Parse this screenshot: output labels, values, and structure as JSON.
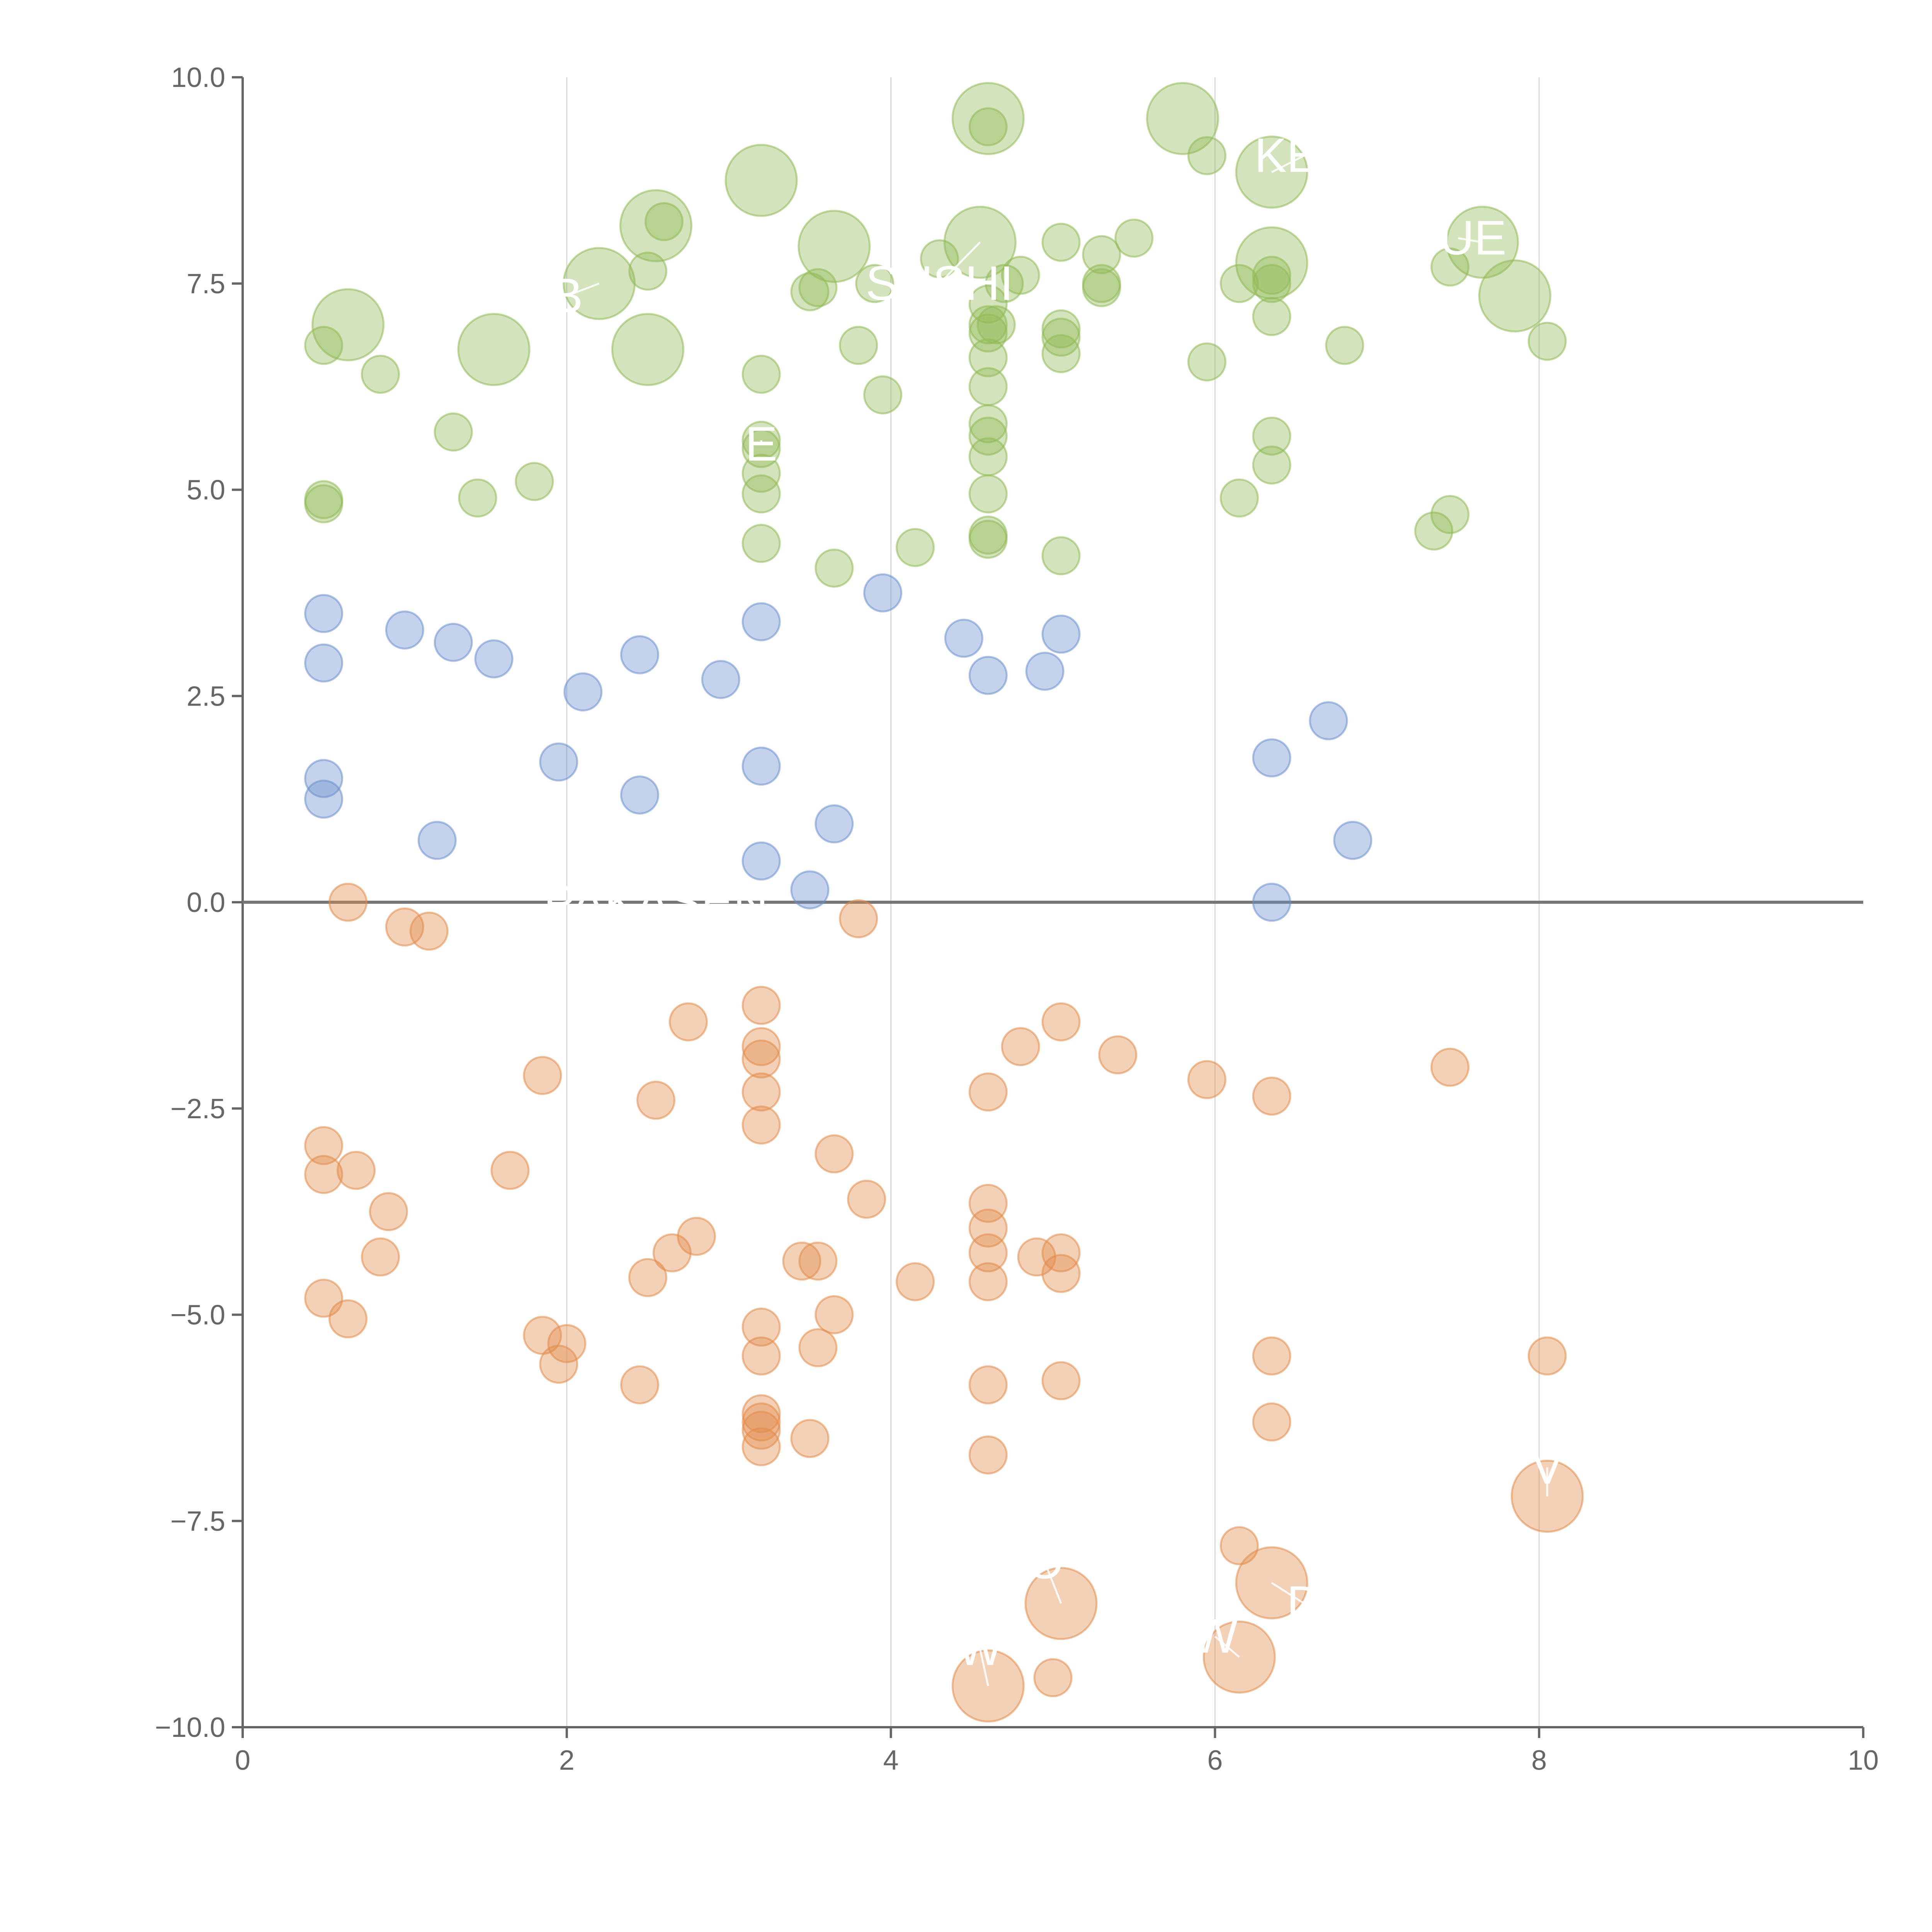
{
  "colors": {
    "positive": "#90b955",
    "neutral": "#6b8fcc",
    "negative": "#e28c4a",
    "axis": "#666666",
    "grid": "#d9d9d9",
    "zero": "#777777",
    "label": "#ffffff"
  },
  "chart_data": {
    "type": "scatter",
    "title": "",
    "xlabel": "",
    "ylabel": "",
    "xlim": [
      0,
      10
    ],
    "ylim": [
      -10,
      10
    ],
    "x_ticks": [
      "0",
      "2",
      "4",
      "6",
      "8",
      "10"
    ],
    "y_ticks": [
      "10.0",
      "7.5",
      "5.0",
      "2.5",
      "0.0",
      "−2.5",
      "−5.0",
      "−7.5",
      "−10.0"
    ],
    "grid": "vertical lines at x ticks",
    "series": [
      {
        "name": "positive",
        "color": "#90b955",
        "points": [
          {
            "x": 0.65,
            "y": 7.0,
            "r": 2
          },
          {
            "x": 1.55,
            "y": 6.7,
            "r": 2
          },
          {
            "x": 2.2,
            "y": 7.5,
            "r": 2
          },
          {
            "x": 2.55,
            "y": 8.2,
            "r": 2
          },
          {
            "x": 2.5,
            "y": 6.7,
            "r": 2
          },
          {
            "x": 3.2,
            "y": 8.75,
            "r": 2
          },
          {
            "x": 3.65,
            "y": 7.95,
            "r": 2
          },
          {
            "x": 4.6,
            "y": 9.5,
            "r": 2
          },
          {
            "x": 4.55,
            "y": 8.0,
            "r": 2
          },
          {
            "x": 5.8,
            "y": 9.5,
            "r": 2
          },
          {
            "x": 6.35,
            "y": 8.85,
            "r": 2
          },
          {
            "x": 6.35,
            "y": 7.75,
            "r": 2
          },
          {
            "x": 7.65,
            "y": 8.0,
            "r": 2
          },
          {
            "x": 7.85,
            "y": 7.35,
            "r": 2
          },
          {
            "x": 0.5,
            "y": 6.75,
            "r": 1
          },
          {
            "x": 0.85,
            "y": 6.4,
            "r": 1
          },
          {
            "x": 1.3,
            "y": 5.7,
            "r": 1
          },
          {
            "x": 0.5,
            "y": 4.88,
            "r": 1
          },
          {
            "x": 0.5,
            "y": 4.83,
            "r": 1
          },
          {
            "x": 1.45,
            "y": 4.9,
            "r": 1
          },
          {
            "x": 1.8,
            "y": 5.1,
            "r": 1
          },
          {
            "x": 2.5,
            "y": 7.65,
            "r": 1
          },
          {
            "x": 2.6,
            "y": 8.25,
            "r": 1
          },
          {
            "x": 3.2,
            "y": 6.4,
            "r": 1
          },
          {
            "x": 3.2,
            "y": 5.6,
            "r": 1
          },
          {
            "x": 3.2,
            "y": 5.5,
            "r": 1
          },
          {
            "x": 3.2,
            "y": 5.2,
            "r": 1
          },
          {
            "x": 3.2,
            "y": 4.95,
            "r": 1
          },
          {
            "x": 3.2,
            "y": 4.35,
            "r": 1
          },
          {
            "x": 3.5,
            "y": 7.4,
            "r": 1
          },
          {
            "x": 3.55,
            "y": 7.45,
            "r": 1
          },
          {
            "x": 3.65,
            "y": 4.05,
            "r": 1
          },
          {
            "x": 3.8,
            "y": 6.75,
            "r": 1
          },
          {
            "x": 3.9,
            "y": 7.5,
            "r": 1
          },
          {
            "x": 3.95,
            "y": 6.15,
            "r": 1
          },
          {
            "x": 4.15,
            "y": 4.3,
            "r": 1
          },
          {
            "x": 4.3,
            "y": 7.8,
            "r": 1
          },
          {
            "x": 4.6,
            "y": 9.4,
            "r": 1
          },
          {
            "x": 4.6,
            "y": 7.25,
            "r": 1
          },
          {
            "x": 4.6,
            "y": 7.0,
            "r": 1
          },
          {
            "x": 4.6,
            "y": 6.9,
            "r": 1
          },
          {
            "x": 4.6,
            "y": 6.6,
            "r": 1
          },
          {
            "x": 4.6,
            "y": 6.25,
            "r": 1
          },
          {
            "x": 4.6,
            "y": 5.8,
            "r": 1
          },
          {
            "x": 4.6,
            "y": 5.65,
            "r": 1
          },
          {
            "x": 4.6,
            "y": 5.4,
            "r": 1
          },
          {
            "x": 4.6,
            "y": 4.95,
            "r": 1
          },
          {
            "x": 4.6,
            "y": 4.45,
            "r": 1
          },
          {
            "x": 4.6,
            "y": 4.4,
            "r": 1
          },
          {
            "x": 4.65,
            "y": 7.0,
            "r": 1
          },
          {
            "x": 4.7,
            "y": 7.5,
            "r": 1
          },
          {
            "x": 4.8,
            "y": 7.6,
            "r": 1
          },
          {
            "x": 5.05,
            "y": 8.0,
            "r": 1
          },
          {
            "x": 5.05,
            "y": 6.95,
            "r": 1
          },
          {
            "x": 5.05,
            "y": 6.85,
            "r": 1
          },
          {
            "x": 5.05,
            "y": 6.65,
            "r": 1
          },
          {
            "x": 5.05,
            "y": 4.2,
            "r": 1
          },
          {
            "x": 5.3,
            "y": 7.85,
            "r": 1
          },
          {
            "x": 5.3,
            "y": 7.5,
            "r": 1
          },
          {
            "x": 5.3,
            "y": 7.45,
            "r": 1
          },
          {
            "x": 5.5,
            "y": 8.05,
            "r": 1
          },
          {
            "x": 5.95,
            "y": 9.05,
            "r": 1
          },
          {
            "x": 5.95,
            "y": 6.55,
            "r": 1
          },
          {
            "x": 6.15,
            "y": 7.5,
            "r": 1
          },
          {
            "x": 6.15,
            "y": 4.9,
            "r": 1
          },
          {
            "x": 6.35,
            "y": 7.6,
            "r": 1
          },
          {
            "x": 6.35,
            "y": 7.5,
            "r": 1
          },
          {
            "x": 6.35,
            "y": 7.1,
            "r": 1
          },
          {
            "x": 6.35,
            "y": 5.65,
            "r": 1
          },
          {
            "x": 6.35,
            "y": 5.3,
            "r": 1
          },
          {
            "x": 6.8,
            "y": 6.75,
            "r": 1
          },
          {
            "x": 7.35,
            "y": 4.5,
            "r": 1
          },
          {
            "x": 7.45,
            "y": 7.7,
            "r": 1
          },
          {
            "x": 7.45,
            "y": 4.7,
            "r": 1
          },
          {
            "x": 8.05,
            "y": 6.8,
            "r": 1
          }
        ]
      },
      {
        "name": "neutral",
        "color": "#6b8fcc",
        "points": [
          {
            "x": 0.5,
            "y": 3.5,
            "r": 1
          },
          {
            "x": 0.5,
            "y": 2.9,
            "r": 1
          },
          {
            "x": 0.5,
            "y": 1.5,
            "r": 1
          },
          {
            "x": 0.5,
            "y": 1.25,
            "r": 1
          },
          {
            "x": 1.0,
            "y": 3.3,
            "r": 1
          },
          {
            "x": 1.3,
            "y": 3.15,
            "r": 1
          },
          {
            "x": 1.55,
            "y": 2.95,
            "r": 1
          },
          {
            "x": 1.2,
            "y": 0.75,
            "r": 1
          },
          {
            "x": 1.95,
            "y": 1.7,
            "r": 1
          },
          {
            "x": 2.1,
            "y": 2.55,
            "r": 1
          },
          {
            "x": 2.45,
            "y": 3.0,
            "r": 1
          },
          {
            "x": 2.45,
            "y": 1.3,
            "r": 1
          },
          {
            "x": 2.95,
            "y": 2.7,
            "r": 1
          },
          {
            "x": 3.2,
            "y": 3.4,
            "r": 1
          },
          {
            "x": 3.2,
            "y": 1.65,
            "r": 1
          },
          {
            "x": 3.2,
            "y": 0.5,
            "r": 1
          },
          {
            "x": 3.5,
            "y": 0.15,
            "r": 1
          },
          {
            "x": 3.65,
            "y": 0.95,
            "r": 1
          },
          {
            "x": 3.95,
            "y": 3.75,
            "r": 1
          },
          {
            "x": 4.45,
            "y": 3.2,
            "r": 1
          },
          {
            "x": 4.6,
            "y": 2.75,
            "r": 1
          },
          {
            "x": 4.95,
            "y": 2.8,
            "r": 1
          },
          {
            "x": 5.05,
            "y": 3.25,
            "r": 1
          },
          {
            "x": 6.35,
            "y": 1.75,
            "r": 1
          },
          {
            "x": 6.35,
            "y": 0.0,
            "r": 1
          },
          {
            "x": 6.7,
            "y": 2.2,
            "r": 1
          },
          {
            "x": 6.85,
            "y": 0.75,
            "r": 1
          }
        ]
      },
      {
        "name": "negative",
        "color": "#e28c4a",
        "points": [
          {
            "x": 0.65,
            "y": 0.0,
            "r": 1
          },
          {
            "x": 1.0,
            "y": -0.3,
            "r": 1
          },
          {
            "x": 1.15,
            "y": -0.35,
            "r": 1
          },
          {
            "x": 3.8,
            "y": -0.2,
            "r": 1
          },
          {
            "x": 0.5,
            "y": -2.95,
            "r": 1
          },
          {
            "x": 0.5,
            "y": -3.3,
            "r": 1
          },
          {
            "x": 0.7,
            "y": -3.25,
            "r": 1
          },
          {
            "x": 0.9,
            "y": -3.75,
            "r": 1
          },
          {
            "x": 0.85,
            "y": -4.3,
            "r": 1
          },
          {
            "x": 0.5,
            "y": -4.8,
            "r": 1
          },
          {
            "x": 0.65,
            "y": -5.05,
            "r": 1
          },
          {
            "x": 1.65,
            "y": -3.25,
            "r": 1
          },
          {
            "x": 1.85,
            "y": -2.1,
            "r": 1
          },
          {
            "x": 1.85,
            "y": -5.25,
            "r": 1
          },
          {
            "x": 2.0,
            "y": -5.35,
            "r": 1
          },
          {
            "x": 1.95,
            "y": -5.6,
            "r": 1
          },
          {
            "x": 2.55,
            "y": -2.4,
            "r": 1
          },
          {
            "x": 2.5,
            "y": -4.55,
            "r": 1
          },
          {
            "x": 2.65,
            "y": -4.25,
            "r": 1
          },
          {
            "x": 2.75,
            "y": -1.45,
            "r": 1
          },
          {
            "x": 2.8,
            "y": -4.05,
            "r": 1
          },
          {
            "x": 2.45,
            "y": -5.85,
            "r": 1
          },
          {
            "x": 3.2,
            "y": -1.25,
            "r": 1
          },
          {
            "x": 3.2,
            "y": -1.75,
            "r": 1
          },
          {
            "x": 3.2,
            "y": -1.9,
            "r": 1
          },
          {
            "x": 3.2,
            "y": -2.3,
            "r": 1
          },
          {
            "x": 3.2,
            "y": -2.7,
            "r": 1
          },
          {
            "x": 3.2,
            "y": -5.15,
            "r": 1
          },
          {
            "x": 3.2,
            "y": -5.5,
            "r": 1
          },
          {
            "x": 3.2,
            "y": -6.2,
            "r": 1
          },
          {
            "x": 3.2,
            "y": -6.3,
            "r": 1
          },
          {
            "x": 3.2,
            "y": -6.4,
            "r": 1
          },
          {
            "x": 3.2,
            "y": -6.6,
            "r": 1
          },
          {
            "x": 3.45,
            "y": -4.35,
            "r": 1
          },
          {
            "x": 3.5,
            "y": -6.5,
            "r": 1
          },
          {
            "x": 3.55,
            "y": -4.35,
            "r": 1
          },
          {
            "x": 3.55,
            "y": -5.4,
            "r": 1
          },
          {
            "x": 3.65,
            "y": -3.05,
            "r": 1
          },
          {
            "x": 3.65,
            "y": -5.0,
            "r": 1
          },
          {
            "x": 3.85,
            "y": -3.6,
            "r": 1
          },
          {
            "x": 4.15,
            "y": -4.6,
            "r": 1
          },
          {
            "x": 4.6,
            "y": -2.3,
            "r": 1
          },
          {
            "x": 4.6,
            "y": -3.65,
            "r": 1
          },
          {
            "x": 4.6,
            "y": -3.95,
            "r": 1
          },
          {
            "x": 4.6,
            "y": -4.25,
            "r": 1
          },
          {
            "x": 4.6,
            "y": -4.6,
            "r": 1
          },
          {
            "x": 4.6,
            "y": -5.85,
            "r": 1
          },
          {
            "x": 4.6,
            "y": -6.7,
            "r": 1
          },
          {
            "x": 4.8,
            "y": -1.75,
            "r": 1
          },
          {
            "x": 4.9,
            "y": -4.3,
            "r": 1
          },
          {
            "x": 5.05,
            "y": -1.45,
            "r": 1
          },
          {
            "x": 5.05,
            "y": -4.25,
            "r": 1
          },
          {
            "x": 5.05,
            "y": -4.5,
            "r": 1
          },
          {
            "x": 5.05,
            "y": -5.8,
            "r": 1
          },
          {
            "x": 5.0,
            "y": -9.4,
            "r": 1
          },
          {
            "x": 5.4,
            "y": -1.85,
            "r": 1
          },
          {
            "x": 5.95,
            "y": -2.15,
            "r": 1
          },
          {
            "x": 6.15,
            "y": -7.8,
            "r": 1
          },
          {
            "x": 6.35,
            "y": -2.35,
            "r": 1
          },
          {
            "x": 6.35,
            "y": -5.5,
            "r": 1
          },
          {
            "x": 6.35,
            "y": -6.3,
            "r": 1
          },
          {
            "x": 7.45,
            "y": -2.0,
            "r": 1
          },
          {
            "x": 8.05,
            "y": -5.5,
            "r": 1
          },
          {
            "x": 8.05,
            "y": -7.2,
            "r": 2
          },
          {
            "x": 6.35,
            "y": -8.25,
            "r": 2
          },
          {
            "x": 5.05,
            "y": -8.5,
            "r": 2
          },
          {
            "x": 6.15,
            "y": -9.15,
            "r": 2
          },
          {
            "x": 4.6,
            "y": -9.5,
            "r": 2
          }
        ]
      }
    ],
    "labels": [
      {
        "text": "B",
        "x": 2.0,
        "y": 7.35,
        "px": 2.2,
        "py": 7.5,
        "series": "positive"
      },
      {
        "text": "SUSHI",
        "x": 4.3,
        "y": 7.5,
        "px": 4.55,
        "py": 8.0,
        "series": "positive"
      },
      {
        "text": "KEC",
        "x": 6.55,
        "y": 9.05,
        "px": 6.35,
        "py": 8.85,
        "series": "positive"
      },
      {
        "text": "FUE",
        "x": 7.5,
        "y": 8.05,
        "px": 7.65,
        "py": 8.0,
        "series": "positive"
      },
      {
        "text": "E",
        "x": 3.2,
        "y": 5.55,
        "px": 3.2,
        "py": 5.6,
        "series": "positive"
      },
      {
        "text": "PAKASEN",
        "x": 2.55,
        "y": 0.0,
        "px": 2.55,
        "py": 0.0,
        "series": "neutral"
      },
      {
        "text": "V",
        "x": 8.05,
        "y": -6.85,
        "px": 8.05,
        "py": -7.2,
        "series": "negative"
      },
      {
        "text": "D",
        "x": 6.55,
        "y": -8.5,
        "px": 6.35,
        "py": -8.25,
        "series": "negative"
      },
      {
        "text": "O",
        "x": 4.95,
        "y": -8.0,
        "px": 5.05,
        "py": -8.5,
        "series": "negative"
      },
      {
        "text": "W",
        "x": 6.0,
        "y": -8.9,
        "px": 6.15,
        "py": -9.15,
        "series": "negative"
      },
      {
        "text": "W",
        "x": 4.55,
        "y": -9.05,
        "px": 4.6,
        "py": -9.5,
        "series": "negative"
      }
    ]
  }
}
